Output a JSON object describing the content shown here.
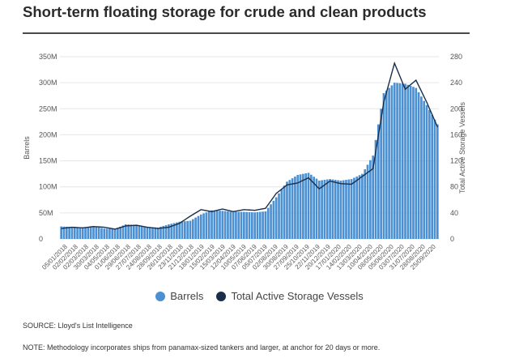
{
  "title": "Short-term floating storage for crude and clean products",
  "source": "SOURCE: Lloyd's List Intelligence",
  "note": "NOTE: Methodology incorporates ships from panamax-sized tankers and larger, at anchor for 20 days or more.",
  "colors": {
    "bars": "#4a90d2",
    "line": "#1a2e4a",
    "rule": "#4a4a4a",
    "grid": "#e6e6e6"
  },
  "chart_data": {
    "type": "bar",
    "xlabel": "",
    "ylabel": "Barrels",
    "y2label": "Total Active Storage Vessels",
    "ylim": [
      0,
      350000000
    ],
    "y2lim": [
      0,
      280
    ],
    "yticks": [
      "0",
      "50M",
      "100M",
      "150M",
      "200M",
      "250M",
      "300M",
      "350M"
    ],
    "y2ticks": [
      "0",
      "40",
      "80",
      "120",
      "160",
      "200",
      "240",
      "280"
    ],
    "categories": [
      "05/01/2018",
      "02/02/2018",
      "02/03/2018",
      "30/03/2018",
      "04/05/2018",
      "01/06/2018",
      "29/06/2018",
      "27/07/2018",
      "24/08/2018",
      "28/09/2018",
      "26/10/2018",
      "23/11/2018",
      "21/12/2018",
      "18/01/2019",
      "15/02/2019",
      "15/03/2019",
      "12/04/2019",
      "10/05/2019",
      "07/06/2019",
      "05/07/2019",
      "02/08/2019",
      "30/08/2019",
      "27/09/2019",
      "25/10/2019",
      "22/11/2019",
      "20/12/2019",
      "17/01/2020",
      "14/02/2020",
      "13/03/2020",
      "10/04/2020",
      "08/05/2020",
      "05/06/2020",
      "03/07/2020",
      "31/07/2020",
      "28/08/2020",
      "25/09/2020"
    ],
    "series": [
      {
        "name": "Barrels",
        "type": "bar",
        "axis": "left",
        "values": [
          24000000,
          23000000,
          22000000,
          24000000,
          20000000,
          19000000,
          28000000,
          27000000,
          23000000,
          22000000,
          28000000,
          33000000,
          35000000,
          47000000,
          55000000,
          54000000,
          52000000,
          52000000,
          51000000,
          53000000,
          80000000,
          110000000,
          123000000,
          127000000,
          112000000,
          115000000,
          112000000,
          115000000,
          125000000,
          160000000,
          280000000,
          300000000,
          298000000,
          290000000,
          257000000,
          220000000
        ]
      },
      {
        "name": "Total Active Storage Vessels",
        "type": "line",
        "axis": "right",
        "values": [
          16,
          18,
          17,
          19,
          18,
          15,
          20,
          21,
          18,
          16,
          18,
          24,
          35,
          45,
          42,
          46,
          42,
          45,
          44,
          47,
          70,
          83,
          86,
          94,
          77,
          89,
          85,
          84,
          96,
          108,
          210,
          270,
          230,
          244,
          210,
          172
        ]
      }
    ]
  }
}
